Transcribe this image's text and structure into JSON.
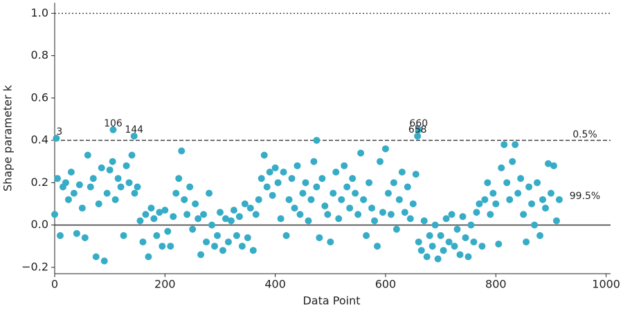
{
  "chart_data": {
    "type": "scatter",
    "xlabel": "Data Point",
    "ylabel": "Shape parameter k",
    "xlim": [
      0,
      1008
    ],
    "ylim": [
      -0.23,
      1.05
    ],
    "xticks": [
      0,
      200,
      400,
      600,
      800,
      1000
    ],
    "yticks": [
      {
        "value": -0.2,
        "label": "−0.2"
      },
      {
        "value": 0,
        "label": "0.0"
      },
      0.2,
      0.4,
      0.6,
      0.8,
      {
        "value": 1,
        "label": "1.0"
      }
    ],
    "hlines": [
      {
        "y": 0,
        "style": "solid",
        "color": "#333333"
      },
      {
        "y": 0.4,
        "style": "dashed",
        "color": "#444444"
      },
      {
        "y": 1,
        "style": "dotted",
        "color": "#444444"
      }
    ],
    "region_labels": [
      {
        "text": "0.5%",
        "y": 0.4
      },
      {
        "text": "99.5%",
        "y": 0.11
      }
    ],
    "annotations": [
      {
        "text": "3",
        "x": 3,
        "y": 0.41
      },
      {
        "text": "106",
        "x": 106,
        "y": 0.45
      },
      {
        "text": "144",
        "x": 144,
        "y": 0.42
      },
      {
        "text": "660",
        "x": 660,
        "y": 0.45
      },
      {
        "text": "658",
        "x": 658,
        "y": 0.42
      }
    ],
    "series": [
      {
        "color": "#36acc6",
        "x": [
          0,
          5,
          10,
          15,
          20,
          25,
          30,
          35,
          40,
          45,
          50,
          55,
          60,
          65,
          70,
          75,
          80,
          85,
          90,
          95,
          100,
          105,
          110,
          115,
          120,
          125,
          130,
          135,
          140,
          145,
          150,
          155,
          160,
          165,
          170,
          175,
          180,
          185,
          190,
          195,
          200,
          205,
          210,
          215,
          220,
          225,
          230,
          235,
          240,
          245,
          250,
          255,
          260,
          265,
          270,
          275,
          280,
          285,
          290,
          295,
          300,
          305,
          310,
          315,
          320,
          325,
          330,
          335,
          340,
          345,
          350,
          355,
          360,
          365,
          370,
          375,
          380,
          385,
          390,
          395,
          400,
          405,
          410,
          415,
          420,
          425,
          430,
          435,
          440,
          445,
          450,
          455,
          460,
          465,
          470,
          475,
          480,
          485,
          490,
          495,
          500,
          505,
          510,
          515,
          520,
          525,
          530,
          535,
          540,
          545,
          550,
          555,
          560,
          565,
          570,
          575,
          580,
          585,
          590,
          595,
          600,
          605,
          610,
          615,
          620,
          625,
          630,
          635,
          640,
          645,
          650,
          655,
          660,
          665,
          670,
          675,
          680,
          685,
          690,
          695,
          700,
          705,
          710,
          715,
          720,
          725,
          730,
          735,
          740,
          745,
          750,
          755,
          760,
          765,
          770,
          775,
          780,
          785,
          790,
          795,
          800,
          805,
          810,
          815,
          820,
          825,
          830,
          835,
          840,
          845,
          850,
          855,
          860,
          865,
          870,
          875,
          880,
          885,
          890,
          895,
          900,
          905,
          910,
          915,
          3,
          106,
          144,
          475,
          658,
          660
        ],
        "values": [
          0.05,
          0.22,
          -0.05,
          0.18,
          0.2,
          0.12,
          0.25,
          0.15,
          -0.04,
          0.19,
          0.08,
          -0.06,
          0.33,
          0.18,
          0.22,
          -0.15,
          0.1,
          0.27,
          -0.17,
          0.15,
          0.26,
          0.3,
          0.12,
          0.22,
          0.18,
          -0.05,
          0.28,
          0.2,
          0.33,
          0.15,
          0.18,
          0.02,
          -0.08,
          0.05,
          -0.15,
          0.08,
          0.03,
          -0.05,
          0.06,
          -0.1,
          0.07,
          -0.03,
          -0.1,
          0.04,
          0.15,
          0.22,
          0.35,
          0.12,
          0.05,
          0.18,
          -0.02,
          0.1,
          0.03,
          -0.14,
          0.05,
          -0.08,
          0.15,
          0.0,
          -0.1,
          -0.05,
          0.06,
          -0.12,
          0.03,
          -0.08,
          0.02,
          0.07,
          -0.05,
          0.04,
          -0.1,
          0.1,
          -0.06,
          0.08,
          -0.12,
          0.05,
          0.12,
          0.22,
          0.33,
          0.18,
          0.25,
          0.14,
          0.27,
          0.2,
          0.03,
          0.25,
          -0.05,
          0.12,
          0.22,
          0.08,
          0.28,
          0.05,
          0.15,
          0.2,
          0.02,
          0.12,
          0.3,
          0.18,
          -0.06,
          0.22,
          0.09,
          0.05,
          -0.08,
          0.15,
          0.25,
          0.03,
          0.12,
          0.28,
          0.18,
          0.08,
          0.22,
          0.15,
          0.05,
          0.34,
          0.12,
          -0.05,
          0.2,
          0.08,
          0.02,
          -0.1,
          0.3,
          0.06,
          0.36,
          0.15,
          0.05,
          0.2,
          -0.02,
          0.12,
          0.25,
          0.06,
          0.18,
          0.03,
          0.1,
          0.24,
          -0.08,
          -0.12,
          0.02,
          -0.15,
          -0.05,
          -0.1,
          0.0,
          -0.16,
          -0.05,
          -0.12,
          0.03,
          -0.08,
          0.05,
          -0.1,
          -0.02,
          -0.14,
          0.04,
          -0.06,
          -0.15,
          0.0,
          -0.08,
          0.06,
          0.1,
          -0.1,
          0.12,
          0.2,
          0.05,
          0.15,
          0.1,
          -0.09,
          0.27,
          0.38,
          0.2,
          0.12,
          0.3,
          0.38,
          0.15,
          0.22,
          0.05,
          -0.08,
          0.18,
          0.1,
          0.0,
          0.2,
          -0.05,
          0.12,
          0.08,
          0.29,
          0.15,
          0.28,
          0.02,
          0.12,
          0.41,
          0.45,
          0.42,
          0.4,
          0.42,
          0.45
        ]
      }
    ]
  }
}
